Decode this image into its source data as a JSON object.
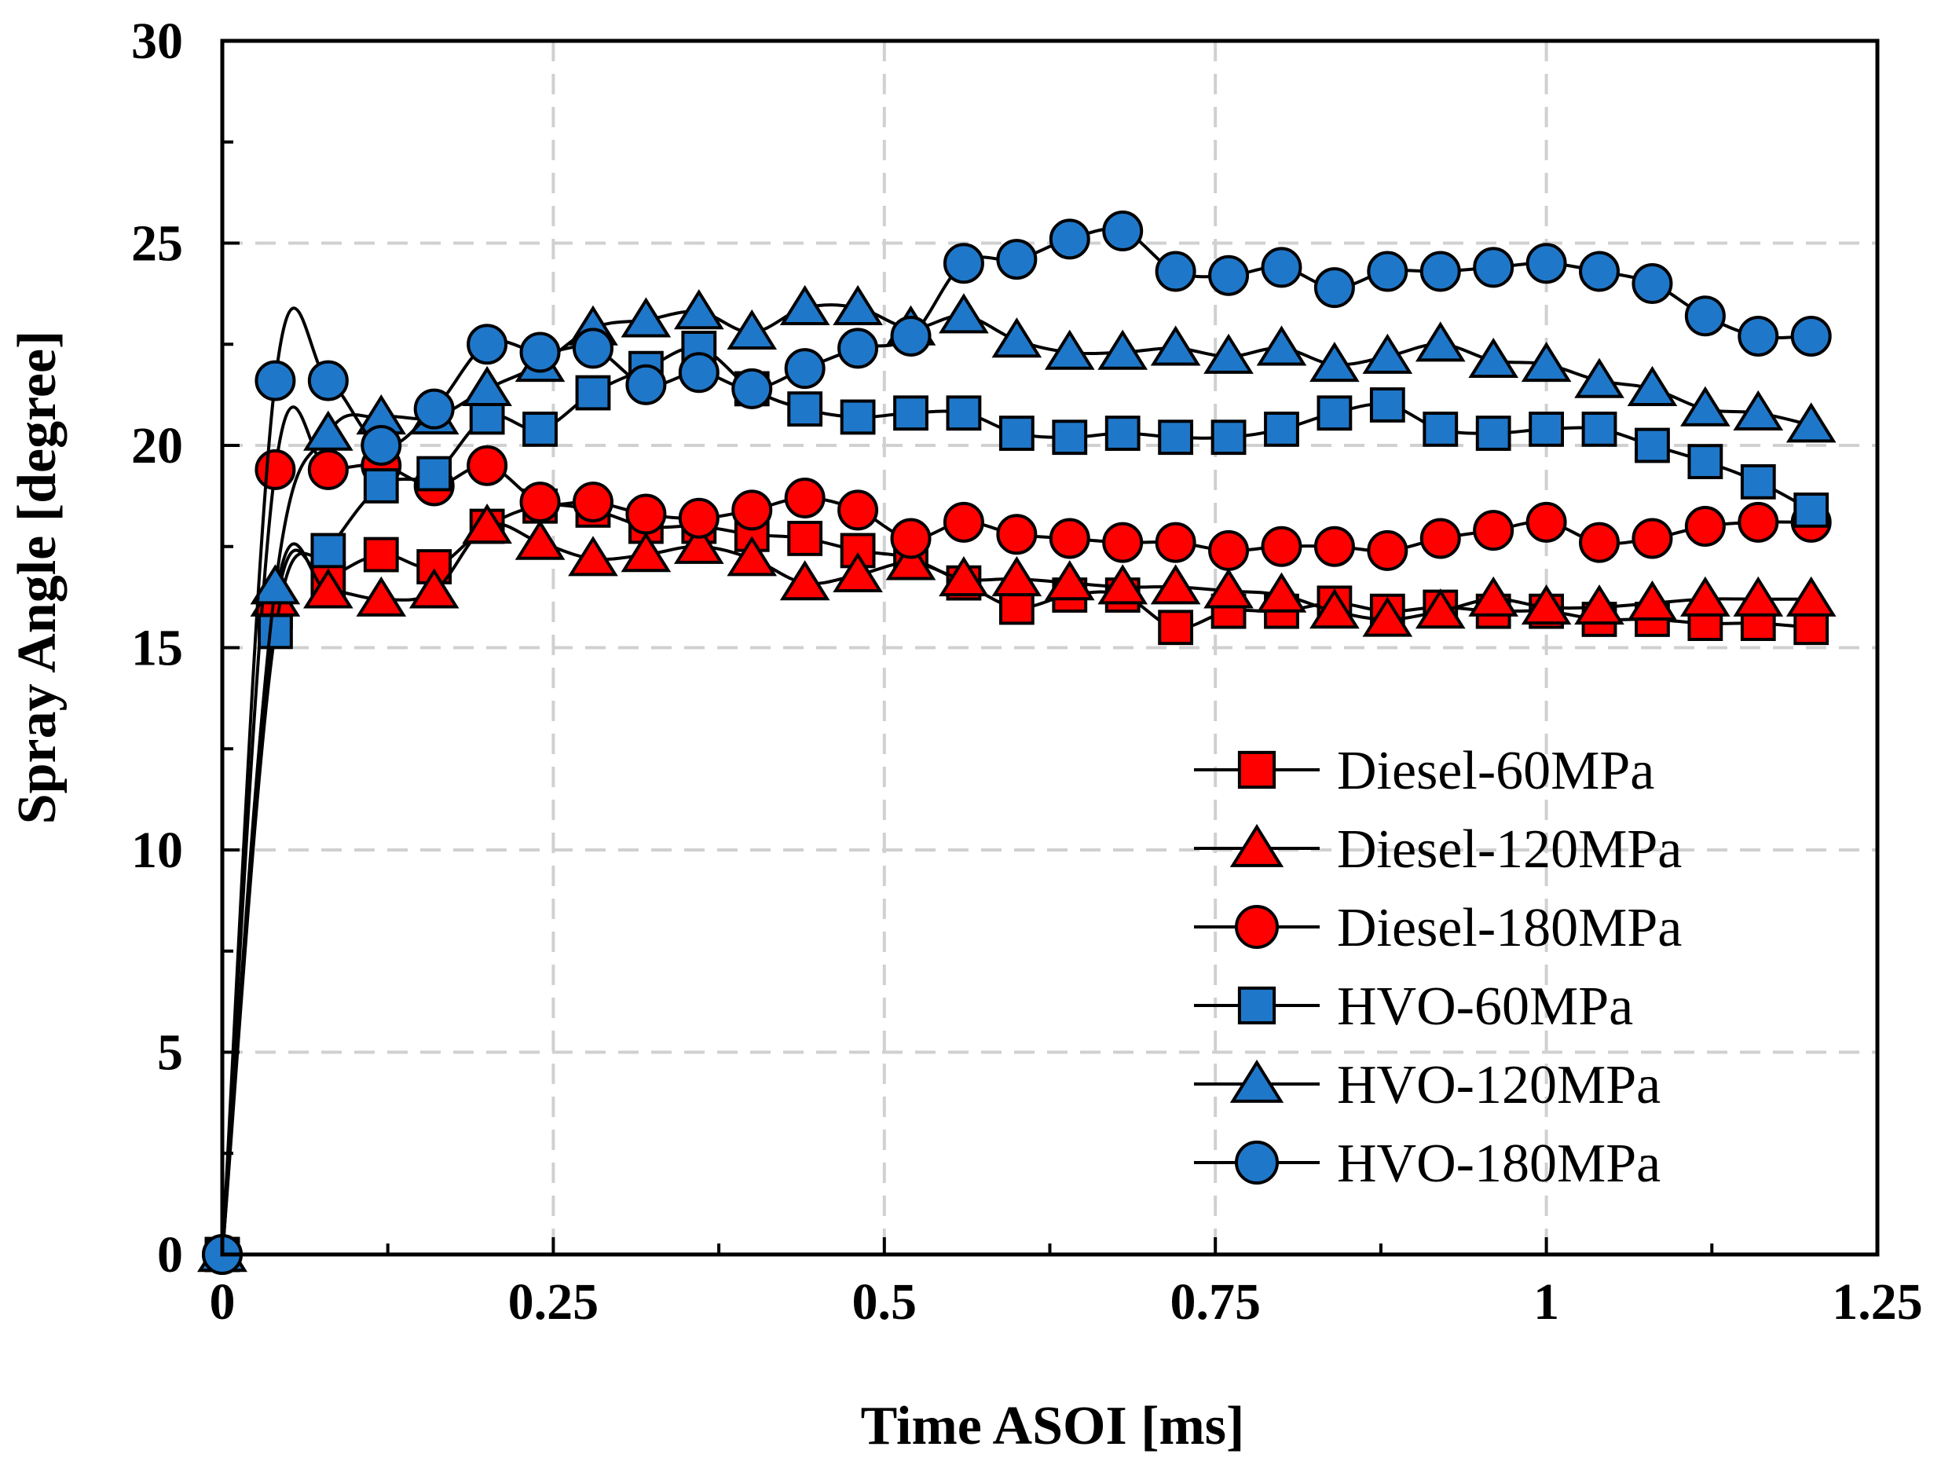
{
  "chart_data": {
    "type": "line",
    "title": "",
    "xlabel": "Time ASOI [ms]",
    "ylabel": "Spray Angle [degree]",
    "xlim": [
      0,
      1.25
    ],
    "ylim": [
      0,
      30
    ],
    "x_ticks": [
      0,
      0.25,
      0.5,
      0.75,
      1,
      1.25
    ],
    "x_tick_labels": [
      "0",
      "0.25",
      "0.5",
      "0.75",
      "1",
      "1.25"
    ],
    "y_ticks": [
      0,
      5,
      10,
      15,
      20,
      25,
      30
    ],
    "y_tick_labels": [
      "0",
      "5",
      "10",
      "15",
      "20",
      "25",
      "30"
    ],
    "grid": true,
    "legend_position": "bottom-right",
    "x": [
      0,
      0.04,
      0.08,
      0.12,
      0.16,
      0.2,
      0.24,
      0.28,
      0.32,
      0.36,
      0.4,
      0.44,
      0.48,
      0.52,
      0.56,
      0.6,
      0.64,
      0.68,
      0.72,
      0.76,
      0.8,
      0.84,
      0.88,
      0.92,
      0.96,
      1.0,
      1.04,
      1.08,
      1.12,
      1.16,
      1.2
    ],
    "series": [
      {
        "name": "Diesel-60MPa",
        "marker": "square",
        "color": "#ff0000",
        "values": [
          0,
          15.9,
          16.7,
          17.3,
          17.0,
          18.0,
          18.5,
          18.4,
          18.0,
          18.0,
          17.8,
          17.7,
          17.4,
          17.2,
          16.6,
          16.0,
          16.3,
          16.3,
          15.5,
          15.9,
          15.9,
          16.1,
          15.9,
          16.0,
          15.9,
          15.9,
          15.7,
          15.7,
          15.6,
          15.6,
          15.5
        ]
      },
      {
        "name": "Diesel-120MPa",
        "marker": "triangle",
        "color": "#ff0000",
        "values": [
          0,
          16.2,
          16.4,
          16.2,
          16.4,
          18.0,
          17.6,
          17.2,
          17.3,
          17.5,
          17.2,
          16.6,
          16.8,
          17.1,
          16.7,
          16.7,
          16.6,
          16.5,
          16.5,
          16.4,
          16.3,
          15.9,
          15.7,
          15.9,
          16.2,
          16.0,
          16.0,
          16.1,
          16.2,
          16.2,
          16.2
        ]
      },
      {
        "name": "Diesel-180MPa",
        "marker": "circle",
        "color": "#ff0000",
        "values": [
          0,
          19.4,
          19.4,
          19.5,
          19.0,
          19.5,
          18.6,
          18.6,
          18.3,
          18.2,
          18.4,
          18.7,
          18.4,
          17.7,
          18.1,
          17.8,
          17.7,
          17.6,
          17.6,
          17.4,
          17.5,
          17.5,
          17.4,
          17.7,
          17.9,
          18.1,
          17.6,
          17.7,
          18.0,
          18.1,
          18.1
        ]
      },
      {
        "name": "HVO-60MPa",
        "marker": "square",
        "color": "#1f77c9",
        "values": [
          0,
          15.4,
          17.4,
          19.0,
          19.3,
          20.7,
          20.4,
          21.3,
          21.9,
          22.4,
          21.4,
          20.9,
          20.7,
          20.8,
          20.8,
          20.3,
          20.2,
          20.3,
          20.2,
          20.2,
          20.4,
          20.8,
          21.0,
          20.4,
          20.3,
          20.4,
          20.4,
          20.0,
          19.6,
          19.1,
          18.4
        ]
      },
      {
        "name": "HVO-120MPa",
        "marker": "triangle",
        "color": "#1f77c9",
        "values": [
          0,
          16.5,
          20.3,
          20.7,
          20.7,
          21.4,
          22.0,
          22.9,
          23.1,
          23.3,
          22.8,
          23.4,
          23.4,
          22.9,
          23.2,
          22.6,
          22.3,
          22.3,
          22.4,
          22.2,
          22.4,
          22.0,
          22.2,
          22.5,
          22.1,
          22.0,
          21.6,
          21.4,
          20.9,
          20.8,
          20.5
        ]
      },
      {
        "name": "HVO-180MPa",
        "marker": "circle",
        "color": "#1f77c9",
        "values": [
          0,
          21.6,
          21.6,
          20.0,
          20.9,
          22.5,
          22.3,
          22.4,
          21.5,
          21.8,
          21.4,
          21.9,
          22.4,
          22.7,
          24.5,
          24.6,
          25.1,
          25.3,
          24.3,
          24.2,
          24.4,
          23.9,
          24.3,
          24.3,
          24.4,
          24.5,
          24.3,
          24.0,
          23.2,
          22.7,
          22.7
        ]
      }
    ]
  }
}
